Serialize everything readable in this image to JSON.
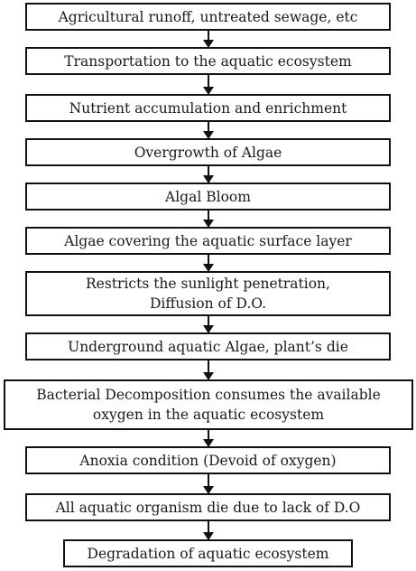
{
  "flowchart": {
    "steps": [
      "Agricultural runoff, untreated sewage, etc",
      "Transportation to the aquatic ecosystem",
      "Nutrient accumulation and enrichment",
      "Overgrowth of Algae",
      "Algal Bloom",
      "Algae covering the aquatic surface layer",
      "Restricts the sunlight penetration,\nDiffusion of D.O.",
      "Underground aquatic Algae, plant’s die",
      "Bacterial Decomposition consumes the available\noxygen in the aquatic ecosystem",
      "Anoxia condition (Devoid of oxygen)",
      "All aquatic organism die due to lack of D.O",
      "Degradation of aquatic ecosystem"
    ]
  }
}
